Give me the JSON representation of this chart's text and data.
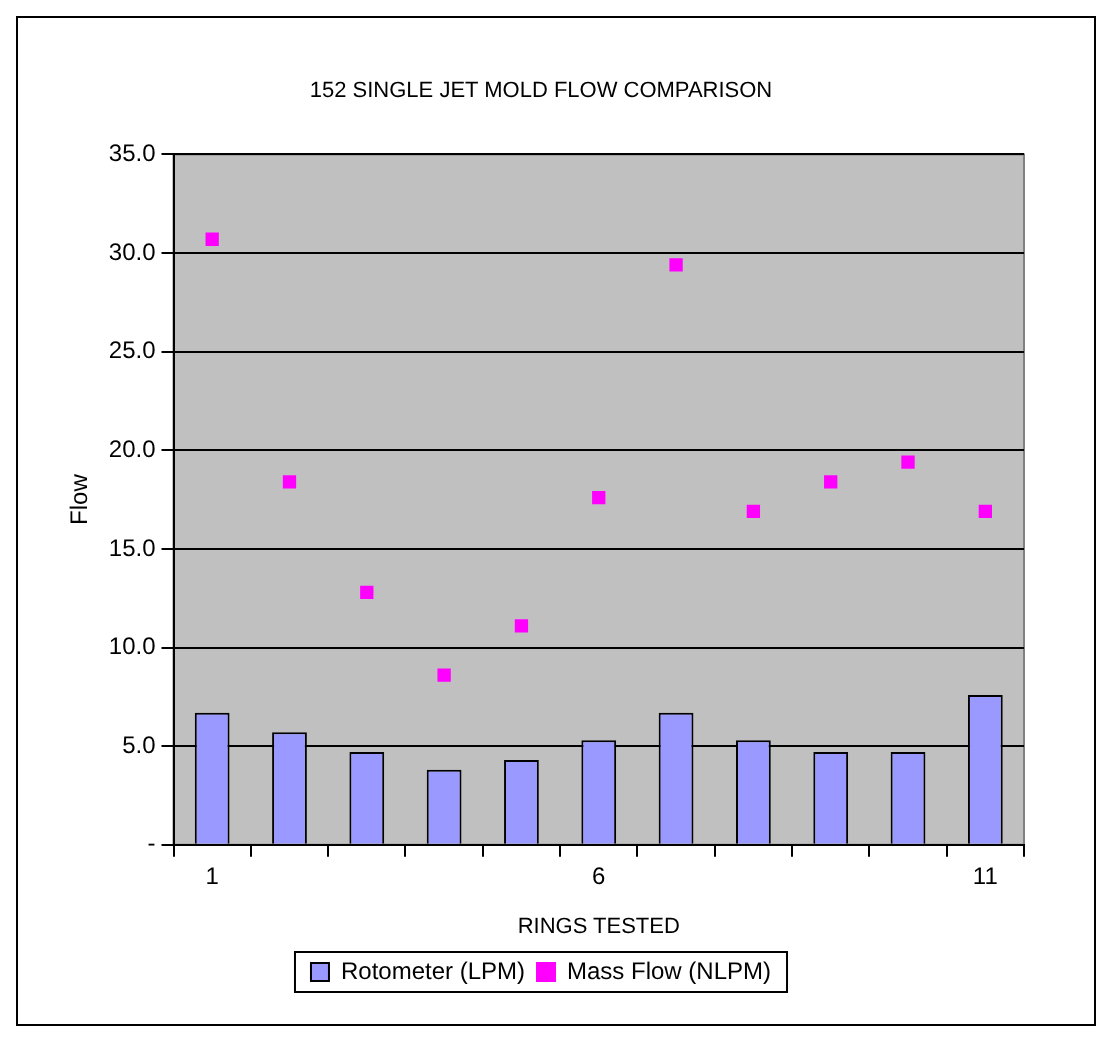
{
  "chart_data": {
    "type": "bar",
    "title": "152 SINGLE JET MOLD FLOW COMPARISON",
    "xlabel": "RINGS TESTED",
    "ylabel": "Flow",
    "categories": [
      "1",
      null,
      null,
      null,
      null,
      "6",
      null,
      null,
      null,
      null,
      "11"
    ],
    "series": [
      {
        "name": "Rotometer (LPM)",
        "color": "#9999ff",
        "values": [
          6.7,
          5.7,
          4.7,
          3.8,
          4.3,
          5.3,
          6.7,
          5.3,
          4.7,
          4.7,
          7.6
        ]
      },
      {
        "name": "Mass Flow (NLPM)",
        "type": "scatter",
        "color": "#ff00ff",
        "values": [
          30.7,
          18.4,
          12.8,
          8.6,
          11.1,
          17.6,
          29.4,
          16.9,
          18.4,
          19.4,
          16.9
        ]
      }
    ],
    "ylim": [
      0,
      35
    ],
    "yticks": [
      {
        "value": 0,
        "label": "-"
      },
      {
        "value": 5,
        "label": "5.0"
      },
      {
        "value": 10,
        "label": "10.0"
      },
      {
        "value": 15,
        "label": "15.0"
      },
      {
        "value": 20,
        "label": "20.0"
      },
      {
        "value": 25,
        "label": "25.0"
      },
      {
        "value": 30,
        "label": "30.0"
      },
      {
        "value": 35,
        "label": "35.0"
      }
    ],
    "grid": "y",
    "legend": "bottom",
    "marker": "square"
  }
}
